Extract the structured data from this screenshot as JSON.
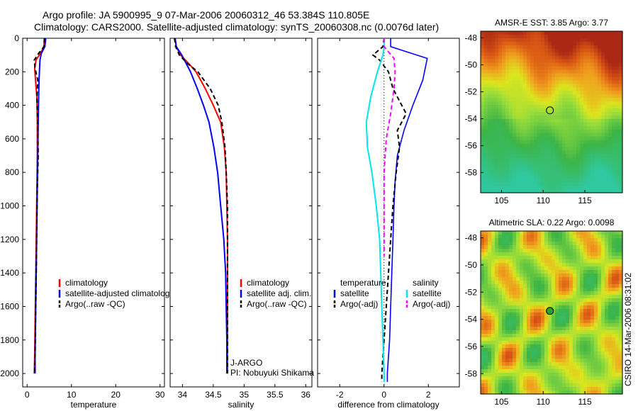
{
  "header": {
    "line1": "Argo profile: JA 5900995_9 07-Mar-2006 20060312_46 53.384S 110.805E",
    "line2": "Climatology: CARS2000. Satellite-adjusted climatology: synTS_20060308.nc (0.0076d later)"
  },
  "footer": {
    "credit": "CSIRO 14-Mar-2006 08:31:02",
    "operator": "J-ARGO",
    "pi": "PI: Nobuyuki Shikama"
  },
  "colors": {
    "climatology": "#ff0000",
    "satellite": "#0000ff",
    "argo": "#000000",
    "salinity_satellite": "#00e5ee",
    "salinity_argo": "#ff00ff"
  },
  "chart_data": [
    {
      "type": "line",
      "id": "temperature",
      "xlabel": "temperature",
      "ylabel": "",
      "xlim": [
        -1,
        31
      ],
      "ylim": [
        2080,
        0
      ],
      "xticks": [
        0,
        10,
        20,
        30
      ],
      "yticks": [
        0,
        200,
        400,
        600,
        800,
        1000,
        1200,
        1400,
        1600,
        1800,
        2000
      ],
      "legend": [
        "climatology",
        "satellite-adjusted climatology",
        "Argo(..raw -QC)"
      ],
      "series": [
        {
          "name": "climatology",
          "color": "#ff0000",
          "dash": "none",
          "width": 2,
          "x": [
            3.9,
            3.8,
            3.0,
            2.0,
            1.7,
            1.9,
            2.2,
            2.3,
            2.3,
            2.2,
            2.1,
            2.0,
            1.9,
            1.8,
            1.7,
            1.6
          ],
          "y": [
            0,
            50,
            90,
            130,
            180,
            250,
            350,
            500,
            700,
            900,
            1100,
            1300,
            1500,
            1700,
            1900,
            2000
          ]
        },
        {
          "name": "satellite-adjusted climatology",
          "color": "#0000ff",
          "dash": "none",
          "width": 2,
          "x": [
            4.2,
            4.0,
            3.2,
            2.9,
            2.8,
            2.7,
            2.6,
            2.5,
            2.4,
            2.3,
            2.2,
            2.1,
            2.0,
            1.9,
            1.8,
            1.8
          ],
          "y": [
            0,
            50,
            90,
            130,
            180,
            250,
            350,
            500,
            700,
            900,
            1100,
            1300,
            1500,
            1700,
            1900,
            2000
          ]
        },
        {
          "name": "Argo(..raw -QC)",
          "color": "#000000",
          "dash": "6,4",
          "width": 2,
          "x": [
            3.9,
            3.8,
            2.6,
            1.6,
            1.8,
            2.4,
            2.2,
            2.4,
            2.5,
            2.3,
            2.2,
            2.1,
            2.0,
            1.9,
            1.8,
            1.7
          ],
          "y": [
            0,
            50,
            90,
            130,
            180,
            250,
            350,
            500,
            700,
            900,
            1100,
            1300,
            1500,
            1700,
            1900,
            2000
          ]
        }
      ]
    },
    {
      "type": "line",
      "id": "salinity",
      "xlabel": "salinity",
      "ylabel": "",
      "xlim": [
        33.8,
        36.1
      ],
      "ylim": [
        2080,
        0
      ],
      "xticks": [
        34,
        34.5,
        35,
        35.5,
        36
      ],
      "legend": [
        "climatology",
        "satellite adj. clim.",
        "Argo(..raw -QC)"
      ],
      "series": [
        {
          "name": "climatology",
          "color": "#ff0000",
          "dash": "none",
          "width": 2,
          "x": [
            33.88,
            33.9,
            33.97,
            34.1,
            34.22,
            34.37,
            34.5,
            34.62,
            34.68,
            34.71,
            34.72,
            34.73,
            34.73,
            34.73,
            34.73,
            34.73
          ],
          "y": [
            0,
            50,
            100,
            150,
            200,
            300,
            400,
            500,
            650,
            800,
            1000,
            1200,
            1400,
            1600,
            1800,
            2000
          ]
        },
        {
          "name": "satellite adj. clim.",
          "color": "#0000ff",
          "dash": "none",
          "width": 2,
          "x": [
            33.88,
            33.9,
            33.99,
            34.06,
            34.13,
            34.24,
            34.34,
            34.43,
            34.51,
            34.57,
            34.62,
            34.67,
            34.7,
            34.71,
            34.72,
            34.72
          ],
          "y": [
            0,
            50,
            100,
            150,
            200,
            300,
            400,
            500,
            650,
            800,
            1000,
            1200,
            1400,
            1600,
            1800,
            2000
          ]
        },
        {
          "name": "Argo(..raw -QC)",
          "color": "#000000",
          "dash": "6,4",
          "width": 2,
          "x": [
            33.87,
            33.89,
            33.95,
            34.08,
            34.25,
            34.45,
            34.58,
            34.64,
            34.69,
            34.71,
            34.73,
            34.73,
            34.73,
            34.73,
            34.73,
            34.73
          ],
          "y": [
            0,
            50,
            100,
            150,
            200,
            300,
            400,
            500,
            650,
            800,
            1000,
            1200,
            1400,
            1600,
            1800,
            2000
          ]
        }
      ]
    },
    {
      "type": "line",
      "id": "difference",
      "xlabel": "difference from climatology",
      "ylabel": "",
      "xlim": [
        -3,
        3.4
      ],
      "ylim": [
        2080,
        0
      ],
      "xticks": [
        -2,
        0,
        2
      ],
      "legend_titles": [
        "temperature",
        "salinity"
      ],
      "legend": [
        "satellite",
        "Argo(-adj)",
        "satellite",
        "Argo(-adj)"
      ],
      "series": [
        {
          "name": "satellite",
          "group": "temperature",
          "color": "#0000ff",
          "dash": "none",
          "width": 1.6,
          "x": [
            0.3,
            0.3,
            1.0,
            1.95,
            1.75,
            1.3,
            0.9,
            0.6,
            0.5,
            0.45,
            0.4,
            0.35,
            0.3,
            0.25,
            0.2,
            0.15,
            0.15
          ],
          "y": [
            0,
            50,
            80,
            120,
            250,
            400,
            550,
            700,
            850,
            1000,
            1200,
            1400,
            1600,
            1800,
            1900,
            2000,
            2050
          ]
        },
        {
          "name": "Argo(-adj)",
          "group": "temperature",
          "color": "#000000",
          "dash": "6,4",
          "width": 2,
          "x": [
            0.0,
            -0.05,
            -0.5,
            -0.2,
            0.2,
            0.4,
            1.0,
            0.6,
            0.7,
            0.55,
            0.4,
            0.3,
            0.2,
            0.1,
            0.0,
            -0.1,
            -0.1
          ],
          "y": [
            0,
            50,
            100,
            130,
            200,
            300,
            450,
            550,
            650,
            800,
            1000,
            1200,
            1400,
            1600,
            1800,
            2000,
            2050
          ]
        },
        {
          "name": "satellite",
          "group": "salinity",
          "color": "#00e5ee",
          "dash": "none",
          "width": 2,
          "x": [
            0.0,
            0.0,
            -0.05,
            -0.3,
            -0.6,
            -0.8,
            -0.75,
            -0.55,
            -0.35,
            -0.2,
            -0.15,
            -0.1,
            -0.05,
            0.0,
            0.0
          ],
          "y": [
            0,
            50,
            100,
            200,
            350,
            500,
            650,
            800,
            1000,
            1200,
            1400,
            1600,
            1800,
            2000,
            2050
          ]
        },
        {
          "name": "Argo(-adj)",
          "group": "salinity",
          "color": "#ff00ff",
          "dash": "6,4",
          "width": 2,
          "x": [
            0.0,
            0.0,
            0.45,
            0.5,
            0.45,
            0.3,
            0.1,
            0.0,
            0.0,
            0.0,
            0.0
          ],
          "y": [
            0,
            50,
            120,
            200,
            300,
            450,
            600,
            800,
            1000,
            1200,
            1300
          ]
        }
      ]
    },
    {
      "type": "heatmap",
      "id": "sst-map",
      "title": "AMSR-E SST: 3.85 Argo: 3.77",
      "xlim": [
        102.5,
        119.5
      ],
      "ylim": [
        -59.5,
        -47.5
      ],
      "xticks": [
        105,
        110,
        115
      ],
      "yticks": [
        -48,
        -50,
        -52,
        -54,
        -56,
        -58
      ],
      "marker": {
        "lon": 110.805,
        "lat": -53.384,
        "fill": "none"
      }
    },
    {
      "type": "heatmap",
      "id": "sla-map",
      "title": "Altimetric SLA: 0.22 Argo: 0.0098",
      "xlim": [
        102.5,
        119.5
      ],
      "ylim": [
        -59.5,
        -47.5
      ],
      "xticks": [
        105,
        110,
        115
      ],
      "yticks": [
        -48,
        -50,
        -52,
        -54,
        -56,
        -58
      ],
      "marker": {
        "lon": 110.805,
        "lat": -53.384,
        "fill": "#2ca02c"
      }
    }
  ]
}
